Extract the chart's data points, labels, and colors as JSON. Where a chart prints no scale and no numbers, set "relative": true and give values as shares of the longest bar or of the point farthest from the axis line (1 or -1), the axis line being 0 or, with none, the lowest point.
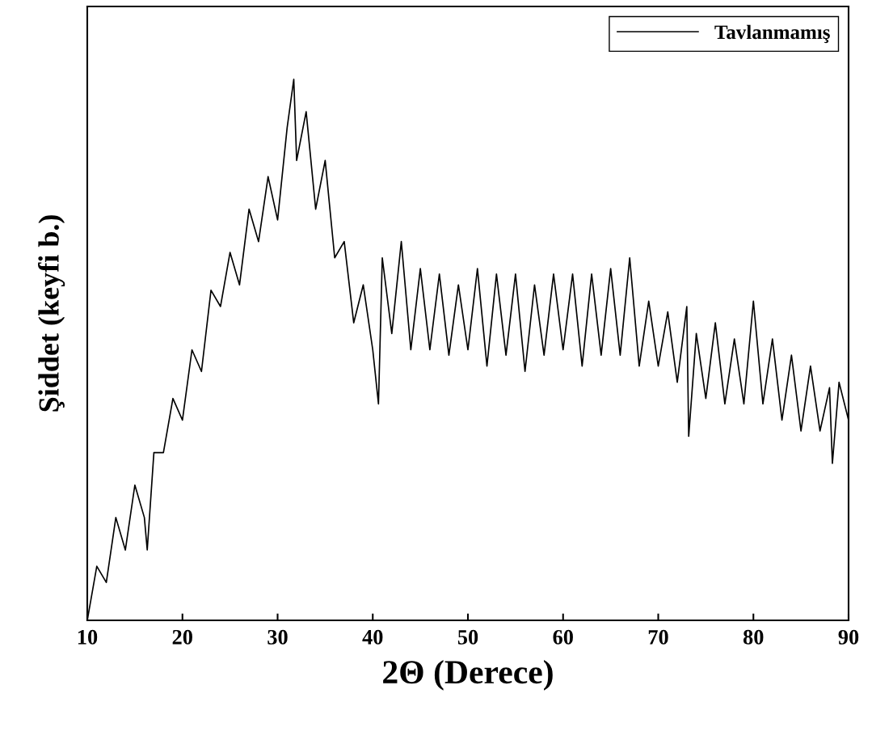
{
  "chart_data": {
    "type": "line",
    "xlabel": "2Θ (Derece)",
    "ylabel": "Şiddet (keyfi b.)",
    "relative": true,
    "xlim": [
      10,
      90
    ],
    "xticks": [
      10,
      20,
      30,
      40,
      50,
      60,
      70,
      80,
      90
    ],
    "tick_labels": "x",
    "legend": "top right",
    "grid": false,
    "series": [
      {
        "name": "Tavlanmamış",
        "color": "#000000",
        "x": [
          10,
          11,
          12,
          13,
          14,
          15,
          16,
          16.3,
          17,
          18,
          19,
          20,
          21,
          22,
          23,
          24,
          25,
          26,
          27,
          28,
          29,
          30,
          31,
          31.7,
          32,
          33,
          34,
          35,
          36,
          37,
          38,
          39,
          40,
          40.6,
          41,
          42,
          43,
          44,
          45,
          46,
          47,
          48,
          49,
          50,
          51,
          52,
          53,
          54,
          55,
          56,
          57,
          58,
          59,
          60,
          61,
          62,
          63,
          64,
          65,
          66,
          67,
          68,
          69,
          70,
          71,
          72,
          73,
          73.2,
          74,
          75,
          76,
          77,
          78,
          79,
          80,
          81,
          82,
          83,
          84,
          85,
          86,
          87,
          88,
          88.3,
          89,
          90
        ],
        "values": [
          0.0,
          0.1,
          0.07,
          0.19,
          0.13,
          0.25,
          0.19,
          0.13,
          0.31,
          0.31,
          0.41,
          0.37,
          0.5,
          0.46,
          0.61,
          0.58,
          0.68,
          0.62,
          0.76,
          0.7,
          0.82,
          0.74,
          0.91,
          1.0,
          0.85,
          0.94,
          0.76,
          0.85,
          0.67,
          0.7,
          0.55,
          0.62,
          0.5,
          0.4,
          0.67,
          0.53,
          0.7,
          0.5,
          0.65,
          0.5,
          0.64,
          0.49,
          0.62,
          0.5,
          0.65,
          0.47,
          0.64,
          0.49,
          0.64,
          0.46,
          0.62,
          0.49,
          0.64,
          0.5,
          0.64,
          0.47,
          0.64,
          0.49,
          0.65,
          0.49,
          0.67,
          0.47,
          0.59,
          0.47,
          0.57,
          0.44,
          0.58,
          0.34,
          0.53,
          0.41,
          0.55,
          0.4,
          0.52,
          0.4,
          0.59,
          0.4,
          0.52,
          0.37,
          0.49,
          0.35,
          0.47,
          0.35,
          0.43,
          0.29,
          0.44,
          0.37
        ]
      }
    ]
  }
}
